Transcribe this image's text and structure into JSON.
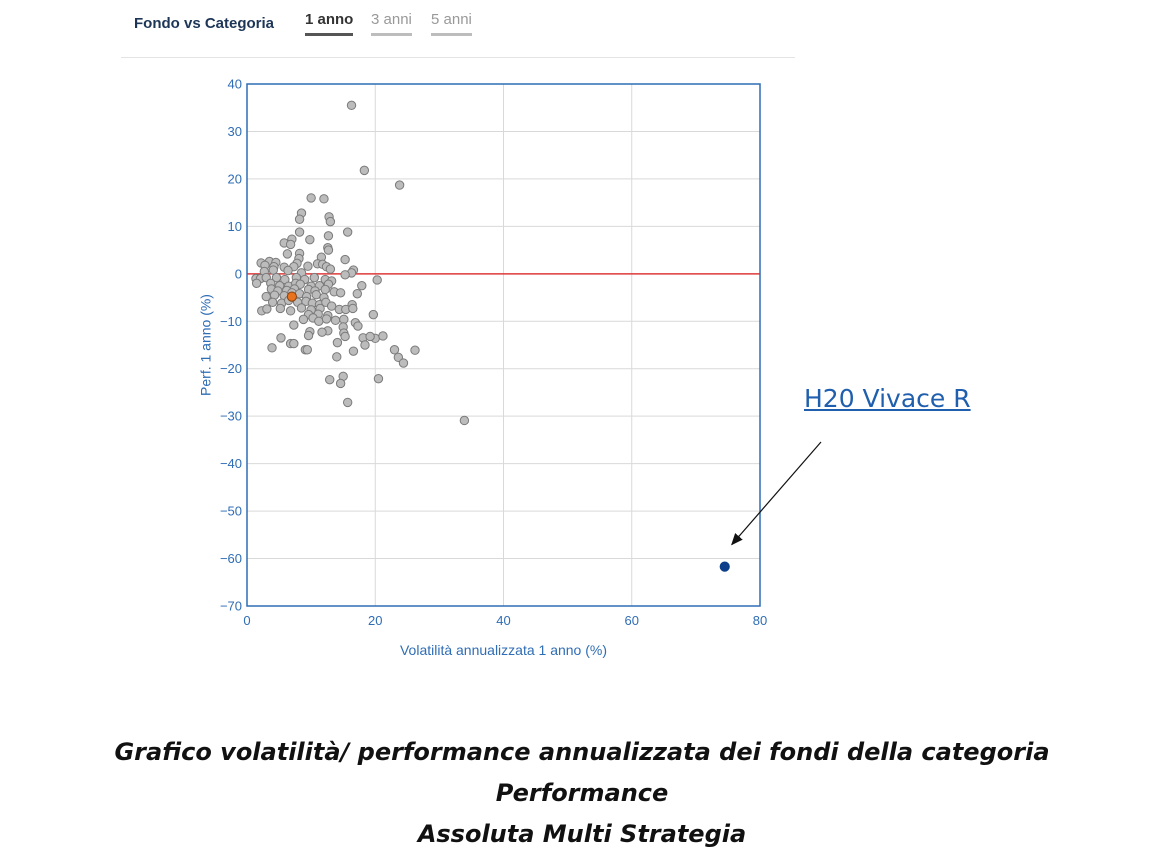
{
  "header": {
    "title": "Fondo vs Categoria",
    "tabs": [
      {
        "label": "1 anno",
        "active": true
      },
      {
        "label": "3 anni",
        "active": false
      },
      {
        "label": "5 anni",
        "active": false
      }
    ]
  },
  "annotation": {
    "label": "H20 Vivace R",
    "target": [
      74.5,
      -61.7
    ]
  },
  "caption": {
    "line1": "Grafico volatilità/ performance annualizzata dei fondi della categoria Performance",
    "line2": "Assoluta Multi Strategia"
  },
  "colors": {
    "axis": "#2f6db5",
    "tick_text": "#2f6db5",
    "grid": "#d9d9d9",
    "zero_line": "#e03a3a",
    "category_point_fill": "#bcbcbc",
    "category_point_stroke": "#7a7a7a",
    "fund_point": "#e8731c",
    "highlight_point": "#0d3f8a"
  },
  "chart_data": {
    "type": "scatter",
    "xlabel": "Volatilità annualizzata 1 anno (%)",
    "ylabel": "Perf. 1 anno (%)",
    "xlim": [
      0,
      80
    ],
    "ylim": [
      -70,
      40
    ],
    "xticks": [
      0,
      20,
      40,
      60,
      80
    ],
    "yticks": [
      -70,
      -60,
      -50,
      -40,
      -30,
      -20,
      -10,
      0,
      10,
      20,
      30,
      40
    ],
    "grid": true,
    "reference_line_y": 0,
    "series": [
      {
        "role": "category",
        "points": [
          [
            16.3,
            35.5
          ],
          [
            18.3,
            21.8
          ],
          [
            23.8,
            18.7
          ],
          [
            10,
            16
          ],
          [
            12,
            15.8
          ],
          [
            8.5,
            12.8
          ],
          [
            8.2,
            11.5
          ],
          [
            12.8,
            12
          ],
          [
            13,
            11
          ],
          [
            8.2,
            8.8
          ],
          [
            12.7,
            8
          ],
          [
            15.7,
            8.8
          ],
          [
            7,
            7.3
          ],
          [
            9.8,
            7.2
          ],
          [
            5.8,
            6.5
          ],
          [
            6.8,
            6.2
          ],
          [
            12.6,
            5.5
          ],
          [
            12.7,
            5
          ],
          [
            6.3,
            4.2
          ],
          [
            8.2,
            4.3
          ],
          [
            11.6,
            3.5
          ],
          [
            8.1,
            3.2
          ],
          [
            15.3,
            3
          ],
          [
            2.2,
            2.3
          ],
          [
            3.5,
            2.6
          ],
          [
            4.5,
            2.4
          ],
          [
            7.8,
            2.2
          ],
          [
            11,
            2.1
          ],
          [
            11.8,
            2
          ],
          [
            2.8,
            1.8
          ],
          [
            4.2,
            1.5
          ],
          [
            5.8,
            1.4
          ],
          [
            7.3,
            1.5
          ],
          [
            9.5,
            1.6
          ],
          [
            12.4,
            1.5
          ],
          [
            13,
            1
          ],
          [
            2.7,
            0.5
          ],
          [
            4.1,
            0.8
          ],
          [
            6.4,
            0.7
          ],
          [
            8.5,
            0.2
          ],
          [
            16.6,
            0.8
          ],
          [
            16.3,
            0.2
          ],
          [
            15.3,
            -0.2
          ],
          [
            1.4,
            -1
          ],
          [
            2.1,
            -1
          ],
          [
            3,
            -0.8
          ],
          [
            4.6,
            -0.8
          ],
          [
            5.9,
            -1.2
          ],
          [
            7.7,
            -0.8
          ],
          [
            9,
            -1.2
          ],
          [
            10.5,
            -0.8
          ],
          [
            12.2,
            -1.2
          ],
          [
            13.2,
            -1.5
          ],
          [
            20.3,
            -1.3
          ],
          [
            1.5,
            -2
          ],
          [
            3.7,
            -2
          ],
          [
            5.1,
            -2.5
          ],
          [
            6.5,
            -2.6
          ],
          [
            7.6,
            -2
          ],
          [
            8.3,
            -2.2
          ],
          [
            10,
            -2.6
          ],
          [
            11.3,
            -2.5
          ],
          [
            12.7,
            -2.2
          ],
          [
            17.9,
            -2.5
          ],
          [
            3.8,
            -3.2
          ],
          [
            4.8,
            -3.6
          ],
          [
            6.2,
            -3.5
          ],
          [
            7.4,
            -3.2
          ],
          [
            9.6,
            -3.3
          ],
          [
            10.6,
            -3.6
          ],
          [
            12.2,
            -3.3
          ],
          [
            13.6,
            -3.8
          ],
          [
            14.6,
            -4
          ],
          [
            17.2,
            -4.2
          ],
          [
            3,
            -4.8
          ],
          [
            4.3,
            -4.5
          ],
          [
            5.8,
            -4.6
          ],
          [
            7,
            -4
          ],
          [
            8.2,
            -4.2
          ],
          [
            9.3,
            -4.8
          ],
          [
            10.8,
            -4.4
          ],
          [
            12,
            -5
          ],
          [
            4,
            -6
          ],
          [
            5.4,
            -6.2
          ],
          [
            6.5,
            -5.6
          ],
          [
            7.9,
            -6
          ],
          [
            9.2,
            -5.8
          ],
          [
            10.2,
            -6.2
          ],
          [
            11.3,
            -6.5
          ],
          [
            12.3,
            -6
          ],
          [
            13.2,
            -6.8
          ],
          [
            16.4,
            -6.5
          ],
          [
            2.3,
            -7.8
          ],
          [
            3.1,
            -7.4
          ],
          [
            5.2,
            -7.3
          ],
          [
            6.8,
            -7.8
          ],
          [
            8.5,
            -7.2
          ],
          [
            10,
            -7.6
          ],
          [
            11.4,
            -7.3
          ],
          [
            14.4,
            -7.5
          ],
          [
            15.4,
            -7.5
          ],
          [
            16.5,
            -7.3
          ],
          [
            9.6,
            -8.6
          ],
          [
            11.1,
            -8.5
          ],
          [
            12.6,
            -8.8
          ],
          [
            19.7,
            -8.6
          ],
          [
            8.8,
            -9.6
          ],
          [
            10.3,
            -9.3
          ],
          [
            11.2,
            -10
          ],
          [
            12.4,
            -9.5
          ],
          [
            13.8,
            -9.8
          ],
          [
            15.1,
            -9.6
          ],
          [
            7.3,
            -10.8
          ],
          [
            16.9,
            -10.3
          ],
          [
            17.3,
            -11
          ],
          [
            15,
            -11.2
          ],
          [
            12.6,
            -12
          ],
          [
            9.8,
            -12.2
          ],
          [
            11.7,
            -12.3
          ],
          [
            15.1,
            -12.5
          ],
          [
            9.6,
            -13
          ],
          [
            15.3,
            -13.2
          ],
          [
            5.3,
            -13.5
          ],
          [
            18.1,
            -13.5
          ],
          [
            20,
            -13.6
          ],
          [
            21.2,
            -13.1
          ],
          [
            19.2,
            -13.2
          ],
          [
            6.8,
            -14.7
          ],
          [
            7.3,
            -14.7
          ],
          [
            14.1,
            -14.5
          ],
          [
            18.4,
            -15
          ],
          [
            3.9,
            -15.6
          ],
          [
            9.1,
            -16
          ],
          [
            9.4,
            -16
          ],
          [
            16.6,
            -16.3
          ],
          [
            23,
            -16
          ],
          [
            26.2,
            -16.1
          ],
          [
            14,
            -17.5
          ],
          [
            23.6,
            -17.6
          ],
          [
            24.4,
            -18.8
          ],
          [
            15,
            -21.6
          ],
          [
            12.9,
            -22.3
          ],
          [
            14.6,
            -23.1
          ],
          [
            20.5,
            -22.1
          ],
          [
            15.7,
            -27.1
          ],
          [
            33.9,
            -30.9
          ]
        ]
      },
      {
        "role": "fund",
        "points": [
          [
            7,
            -4.8
          ]
        ]
      },
      {
        "role": "highlight",
        "points": [
          [
            74.5,
            -61.7
          ]
        ]
      }
    ]
  }
}
